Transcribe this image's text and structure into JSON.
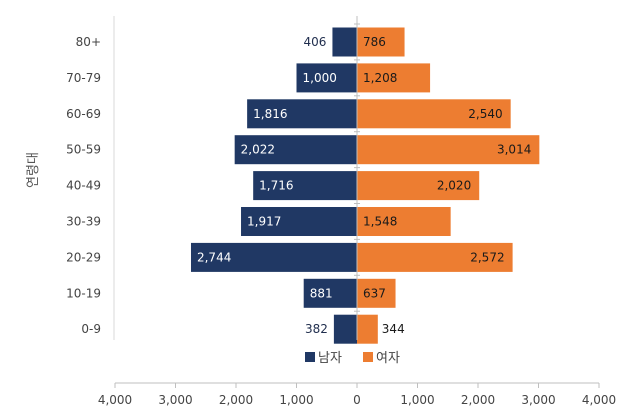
{
  "chart_data": {
    "type": "bar",
    "orientation": "horizontal",
    "layout": "diverging",
    "categories": [
      "80+",
      "70-79",
      "60-69",
      "50-59",
      "40-49",
      "30-39",
      "20-29",
      "10-19",
      "0-9"
    ],
    "series": [
      {
        "name": "남자",
        "color": "#203864",
        "values": [
          406,
          1000,
          1816,
          2022,
          1716,
          1917,
          2744,
          881,
          382
        ],
        "labels": [
          "406",
          "1,000",
          "1,816",
          "2,022",
          "1,716",
          "1,917",
          "2,744",
          "881",
          "382"
        ]
      },
      {
        "name": "여자",
        "color": "#ED7D31",
        "values": [
          786,
          1208,
          2540,
          3014,
          2020,
          1548,
          2572,
          637,
          344
        ],
        "labels": [
          "786",
          "1,208",
          "2,540",
          "3,014",
          "2,020",
          "1,548",
          "2,572",
          "637",
          "344"
        ]
      }
    ],
    "title": "",
    "xlabel": "",
    "ylabel": "연령대",
    "xlim": [
      -4000,
      4000
    ],
    "x_ticks": [
      -4000,
      -3000,
      -2000,
      -1000,
      0,
      1000,
      2000,
      3000,
      4000
    ],
    "x_tick_labels": [
      "4,000",
      "3,000",
      "2,000",
      "1,000",
      "0",
      "1,000",
      "2,000",
      "3,000",
      "4,000"
    ],
    "grid": false,
    "legend": "bottom-center"
  }
}
